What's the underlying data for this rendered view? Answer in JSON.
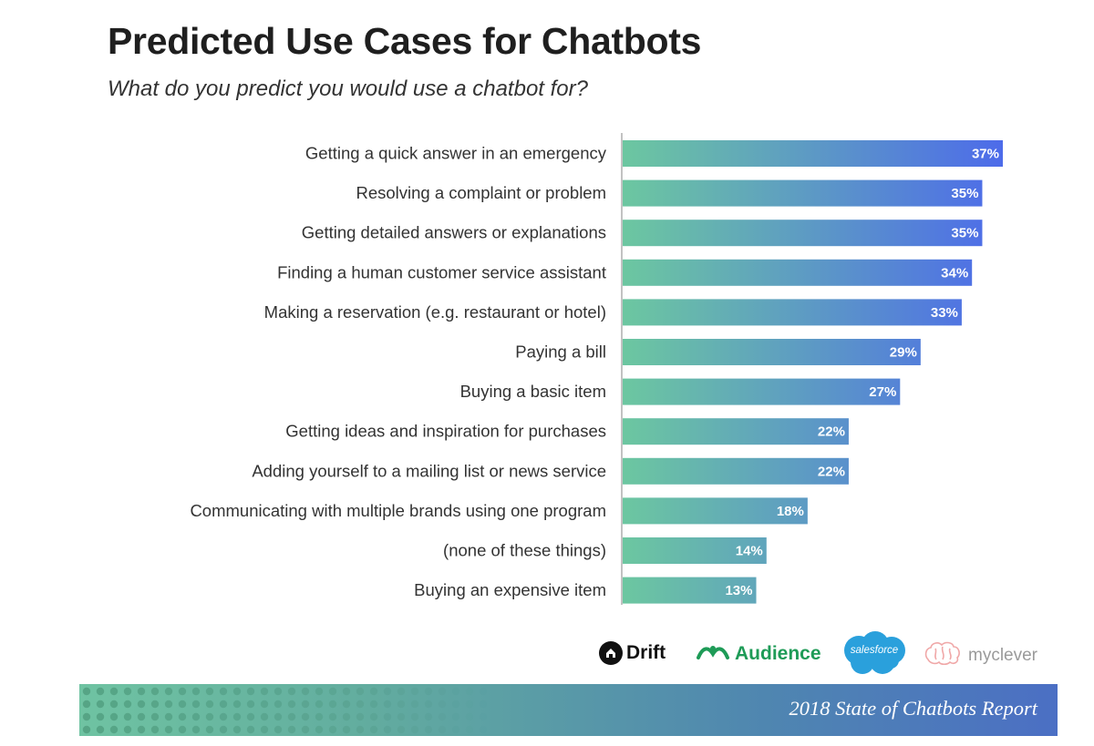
{
  "header": {
    "title": "Predicted Use Cases for Chatbots",
    "subtitle": "What do you predict you would use a chatbot for?"
  },
  "chart_data": {
    "type": "bar",
    "orientation": "horizontal",
    "categories": [
      "Getting a quick answer in an emergency",
      "Resolving a complaint or problem",
      "Getting detailed answers or explanations",
      "Finding a human customer service assistant",
      "Making a reservation (e.g. restaurant or hotel)",
      "Paying a bill",
      "Buying a basic item",
      "Getting ideas and inspiration for purchases",
      "Adding yourself to a mailing list or news service",
      "Communicating with multiple brands using one program",
      "(none of these things)",
      "Buying an expensive item"
    ],
    "values": [
      37,
      35,
      35,
      34,
      33,
      29,
      27,
      22,
      22,
      18,
      14,
      13
    ],
    "value_labels": [
      "37%",
      "35%",
      "35%",
      "34%",
      "33%",
      "29%",
      "27%",
      "22%",
      "22%",
      "18%",
      "14%",
      "13%"
    ],
    "xlim": [
      0,
      37
    ],
    "grid": false,
    "bar_gradient": [
      "#6cc7a0",
      "#4d6bea"
    ]
  },
  "logos": {
    "drift": "Drift",
    "audience": "Audience",
    "salesforce": "salesforce",
    "myclever": "myclever"
  },
  "footer": {
    "text": "2018 State of Chatbots Report"
  }
}
